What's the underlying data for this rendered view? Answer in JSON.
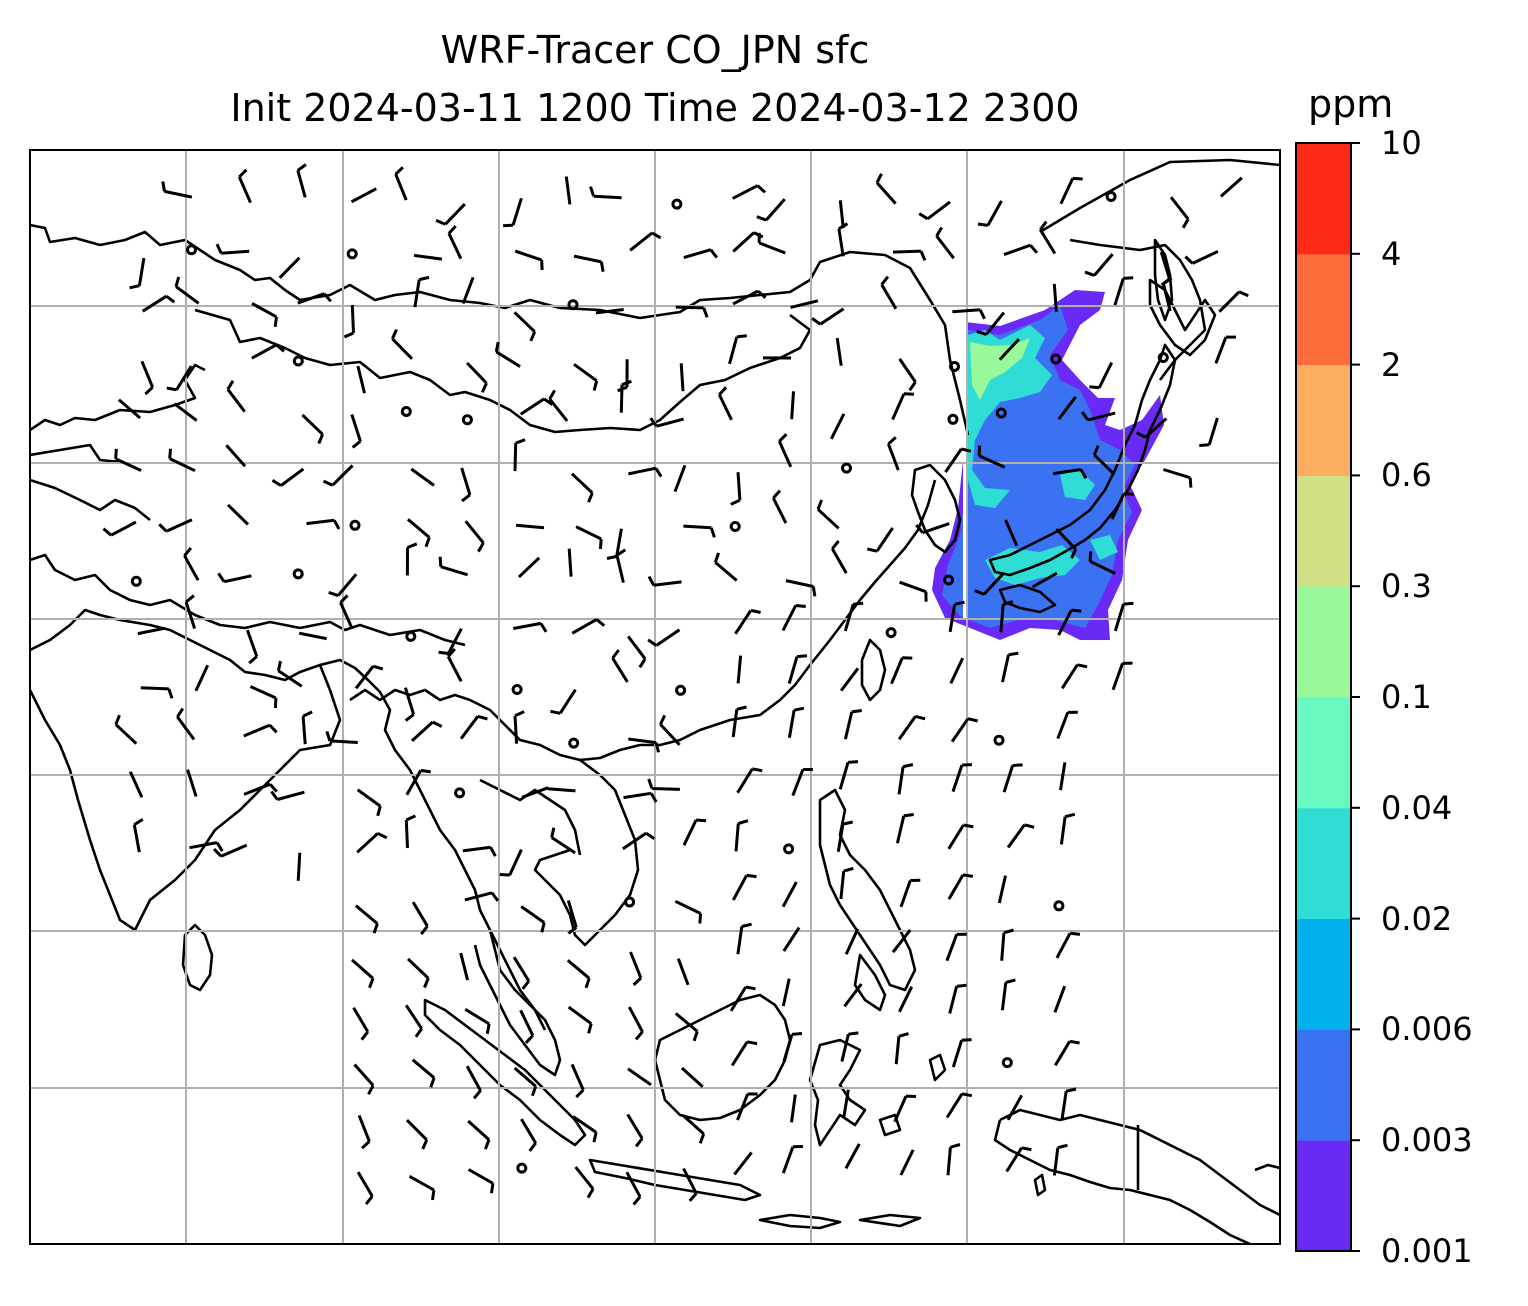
{
  "title": {
    "line1": "WRF-Tracer CO_JPN sfc",
    "line2": "Init 2024-03-11 1200 Time 2024-03-12 2300"
  },
  "colorbar": {
    "unit": "ppm",
    "ticks": [
      "0.001",
      "0.003",
      "0.006",
      "0.02",
      "0.04",
      "0.1",
      "0.3",
      "0.6",
      "2",
      "4",
      "10"
    ],
    "colors": [
      "#6a2af5",
      "#3b72f1",
      "#02b0ec",
      "#2fddd5",
      "#6af8c1",
      "#98f89a",
      "#cfe087",
      "#fcad5f",
      "#fe6d3c",
      "#fc2a17"
    ]
  },
  "map": {
    "tracer_colors": {
      "low": "#6a2af5",
      "mid": "#3b72f1",
      "light": "#2fddd5",
      "high": "#98f89a"
    },
    "coastline_color": "#000000",
    "gridline_color": "#b0b0b0",
    "wind_symbol_color": "#000000"
  }
}
